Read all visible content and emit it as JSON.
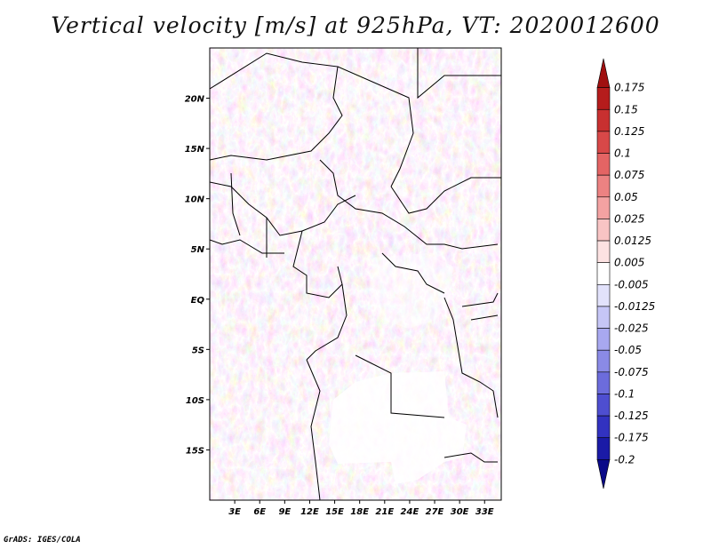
{
  "title": "Vertical velocity [m/s] at 925hPa, VT: 2020012600",
  "credit": "GrADS: IGES/COLA",
  "map": {
    "lon_range": [
      0,
      35
    ],
    "lat_range": [
      -20,
      25
    ],
    "lat_ticks": [
      "20N",
      "15N",
      "10N",
      "5N",
      "EQ",
      "5S",
      "10S",
      "15S"
    ],
    "lat_values": [
      20,
      15,
      10,
      5,
      0,
      -5,
      -10,
      -15
    ],
    "lon_ticks": [
      "3E",
      "6E",
      "9E",
      "12E",
      "15E",
      "18E",
      "21E",
      "24E",
      "27E",
      "30E",
      "33E"
    ],
    "lon_values": [
      3,
      6,
      9,
      12,
      15,
      18,
      21,
      24,
      27,
      30,
      33
    ],
    "field_description": "vertical-velocity-shading",
    "undefined_region_color": "#ffffff"
  },
  "colorbar": {
    "labels": [
      "0.175",
      "0.15",
      "0.125",
      "0.1",
      "0.075",
      "0.05",
      "0.025",
      "0.0125",
      "0.005",
      "-0.005",
      "-0.0125",
      "-0.025",
      "-0.05",
      "-0.075",
      "-0.1",
      "-0.125",
      "-0.175",
      "-0.2"
    ],
    "colors": [
      "#a01010",
      "#b51c1c",
      "#c83030",
      "#d84848",
      "#e46464",
      "#ec8282",
      "#f3a2a2",
      "#f8c4c4",
      "#fce2e2",
      "#ffffff",
      "#e2e2fb",
      "#c6c6f6",
      "#a8a8f0",
      "#8a8ae6",
      "#6c6cdc",
      "#4e4ed0",
      "#3232c0",
      "#1a1aa6",
      "#0a0a88"
    ]
  }
}
